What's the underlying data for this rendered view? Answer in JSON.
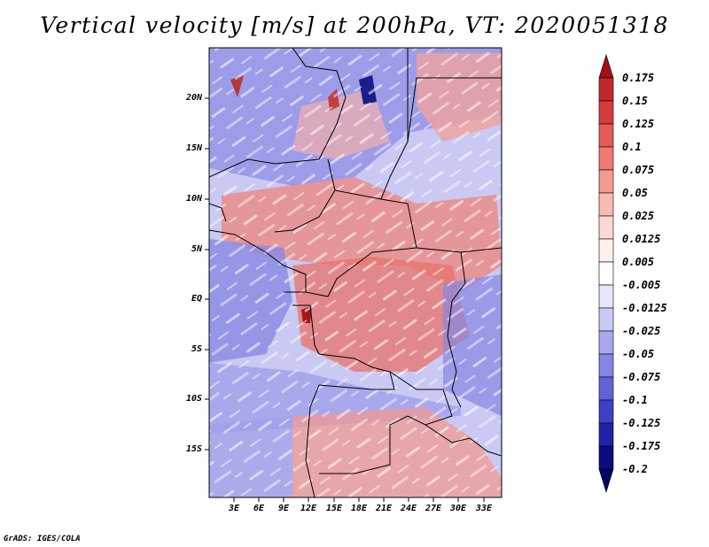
{
  "title": "Vertical velocity [m/s] at 200hPa, VT: 2020051318",
  "credit": "GrADS: IGES/COLA",
  "lat_labels": [
    "20N",
    "15N",
    "10N",
    "5N",
    "EQ",
    "5S",
    "10S",
    "15S"
  ],
  "lon_labels": [
    "3E",
    "6E",
    "9E",
    "12E",
    "15E",
    "18E",
    "21E",
    "24E",
    "27E",
    "30E",
    "33E"
  ],
  "colorbar": {
    "labels": [
      "0.175",
      "0.15",
      "0.125",
      "0.1",
      "0.075",
      "0.05",
      "0.025",
      "0.0125",
      "0.005",
      "-0.005",
      "-0.0125",
      "-0.025",
      "-0.05",
      "-0.075",
      "-0.1",
      "-0.125",
      "-0.175",
      "-0.2"
    ],
    "colors": [
      "#a50f15",
      "#c1272d",
      "#d63b3b",
      "#e55b55",
      "#ef7a73",
      "#f59a92",
      "#f9bab4",
      "#fcd8d4",
      "#fff0ee",
      "#ffffff",
      "#e6e6fb",
      "#cacaf5",
      "#a9a9ef",
      "#8585e6",
      "#6262d9",
      "#3f3fc6",
      "#2222a8",
      "#0c0c80",
      "#050560"
    ]
  },
  "map_colors": {
    "red": "#e8716a",
    "light_red": "#f6bcb6",
    "blue": "#7878e0",
    "light_blue": "#c9c9f4",
    "dark_red": "#8b1a1a",
    "dark_blue": "#1c1c8a"
  }
}
